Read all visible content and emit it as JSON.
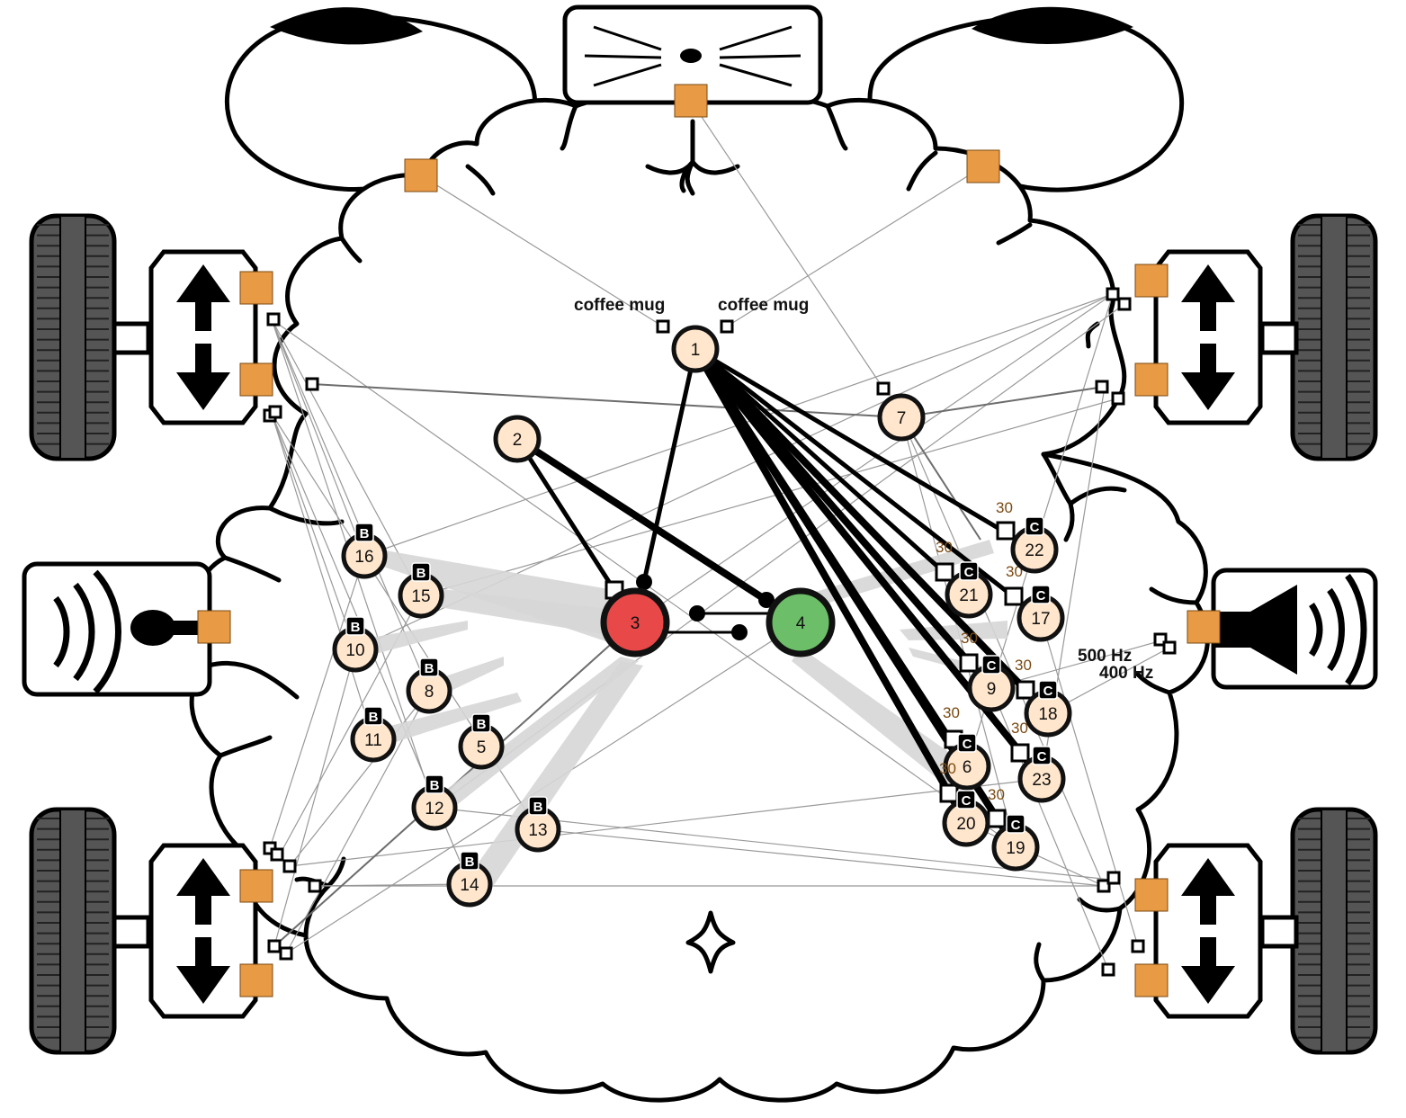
{
  "colors": {
    "neuron_fill": "#ffe6cc",
    "neuron_stroke": "#111111",
    "motor_neuron_fill": "#e84848",
    "sensor_neuron_fill": "#6cbf68",
    "port_fill": "#e89a45",
    "wire_thin": "#999999",
    "wire_thick": "#000000",
    "fan_fill": "#d6d6d6",
    "tire": "#555555",
    "tag_fill": "#000000"
  },
  "devices": {
    "camera": {
      "icon": "camera-icon"
    },
    "microphone": {
      "icon": "microphone-icon"
    },
    "speaker": {
      "icon": "speaker-icon"
    },
    "motors": [
      {
        "id": "motor-front-left",
        "icon": "motor-up-down-icon"
      },
      {
        "id": "motor-front-right",
        "icon": "motor-up-down-icon"
      },
      {
        "id": "motor-rear-left",
        "icon": "motor-up-down-icon"
      },
      {
        "id": "motor-rear-right",
        "icon": "motor-up-down-icon"
      }
    ]
  },
  "labels": {
    "vision_left": "coffee mug",
    "vision_right": "coffee mug",
    "freq_high": "500 Hz",
    "freq_low": "400 Hz"
  },
  "neurons": [
    {
      "id": 1,
      "label": "1",
      "tag": ""
    },
    {
      "id": 2,
      "label": "2",
      "tag": ""
    },
    {
      "id": 3,
      "label": "3",
      "tag": "",
      "role": "motor"
    },
    {
      "id": 4,
      "label": "4",
      "tag": "",
      "role": "sensor"
    },
    {
      "id": 5,
      "label": "5",
      "tag": "B"
    },
    {
      "id": 6,
      "label": "6",
      "tag": "C",
      "weight": "30"
    },
    {
      "id": 7,
      "label": "7",
      "tag": ""
    },
    {
      "id": 8,
      "label": "8",
      "tag": "B"
    },
    {
      "id": 9,
      "label": "9",
      "tag": "C",
      "weight": "30"
    },
    {
      "id": 10,
      "label": "10",
      "tag": "B"
    },
    {
      "id": 11,
      "label": "11",
      "tag": "B"
    },
    {
      "id": 12,
      "label": "12",
      "tag": "B"
    },
    {
      "id": 13,
      "label": "13",
      "tag": "B"
    },
    {
      "id": 14,
      "label": "14",
      "tag": "B"
    },
    {
      "id": 15,
      "label": "15",
      "tag": "B"
    },
    {
      "id": 16,
      "label": "16",
      "tag": "B"
    },
    {
      "id": 17,
      "label": "17",
      "tag": "C",
      "weight": "30"
    },
    {
      "id": 18,
      "label": "18",
      "tag": "C",
      "weight": "30"
    },
    {
      "id": 19,
      "label": "19",
      "tag": "C",
      "weight": "30"
    },
    {
      "id": 20,
      "label": "20",
      "tag": "C",
      "weight": "30"
    },
    {
      "id": 21,
      "label": "21",
      "tag": "C",
      "weight": "30"
    },
    {
      "id": 22,
      "label": "22",
      "tag": "C",
      "weight": "30"
    },
    {
      "id": 23,
      "label": "23",
      "tag": "C",
      "weight": "30"
    }
  ],
  "edges_thick": [
    {
      "from": 1,
      "to": 3
    },
    {
      "from": 2,
      "to": 3
    },
    {
      "from": 2,
      "to": 4
    },
    {
      "from": 1,
      "to": 22
    },
    {
      "from": 1,
      "to": 21
    },
    {
      "from": 1,
      "to": 17
    },
    {
      "from": 1,
      "to": 9
    },
    {
      "from": 1,
      "to": 18
    },
    {
      "from": 1,
      "to": 6
    },
    {
      "from": 1,
      "to": 23
    },
    {
      "from": 1,
      "to": 20
    },
    {
      "from": 1,
      "to": 19
    }
  ]
}
